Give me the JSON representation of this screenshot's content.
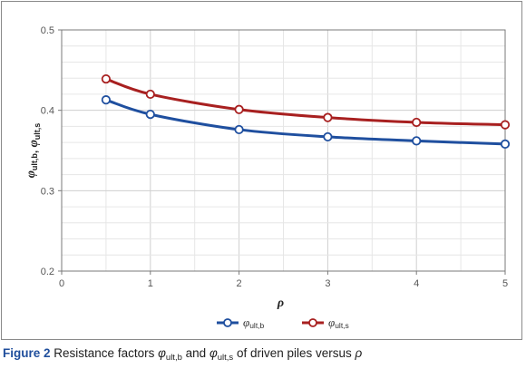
{
  "chart_data": {
    "type": "line",
    "x": [
      0.5,
      1,
      2,
      3,
      4,
      5
    ],
    "series": [
      {
        "name": "φult,b",
        "values": [
          0.413,
          0.395,
          0.376,
          0.367,
          0.362,
          0.358
        ],
        "color": "#1f4f9f"
      },
      {
        "name": "φult,s",
        "values": [
          0.439,
          0.42,
          0.401,
          0.391,
          0.385,
          0.382
        ],
        "color": "#a82020"
      }
    ],
    "xlabel": "ρ",
    "ylabel": "φult,b, φult,s",
    "xlim": [
      0,
      5
    ],
    "ylim": [
      0.2,
      0.5
    ],
    "x_ticks": [
      "0",
      "1",
      "2",
      "3",
      "4",
      "5"
    ],
    "y_ticks": [
      "0.2",
      "0.3",
      "0.4",
      "0.5"
    ],
    "grid": true,
    "legend_position": "bottom-center"
  },
  "caption": {
    "figure_label": "Figure 2",
    "text_before": "Resistance factors",
    "text_and": "and",
    "text_after": "of driven piles versus",
    "phi_b_base": "φ",
    "phi_b_sub": "ult,b",
    "phi_s_base": "φ",
    "phi_s_sub": "ult,s",
    "rho": "ρ"
  }
}
